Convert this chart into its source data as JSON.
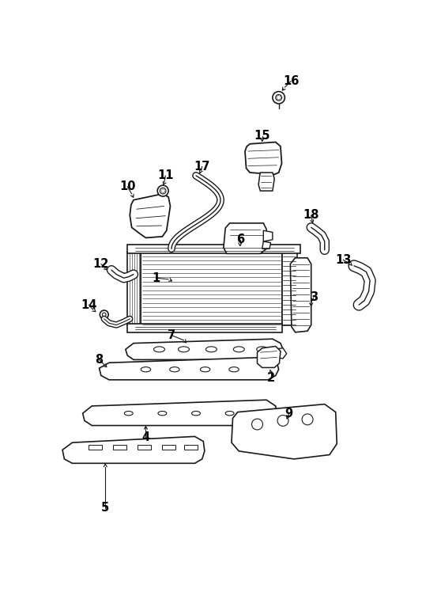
{
  "bg_color": "#ffffff",
  "lc": "#1a1a1a",
  "fs": 10.5
}
